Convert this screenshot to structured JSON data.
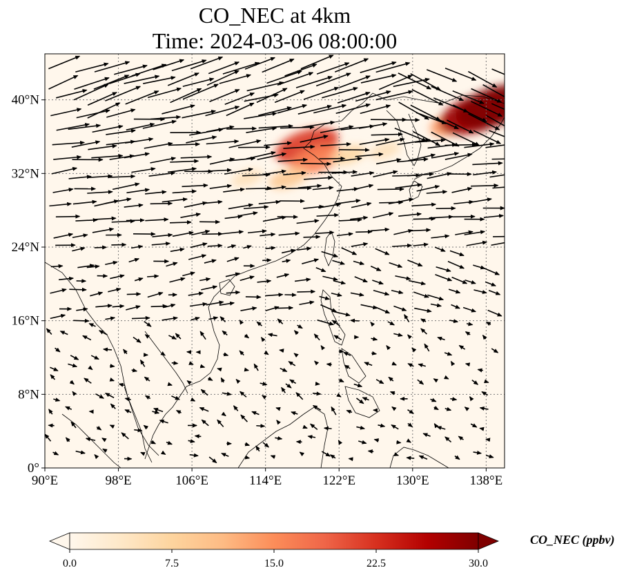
{
  "title": {
    "line1": "CO_NEC at 4km",
    "line2": "Time: 2024-03-06 08:00:00"
  },
  "map": {
    "extent": {
      "lon_min": 90,
      "lon_max": 140,
      "lat_min": 0,
      "lat_max": 45
    },
    "gridlines": true,
    "x_ticks": [
      {
        "value": 90,
        "label": "90°E"
      },
      {
        "value": 98,
        "label": "98°E"
      },
      {
        "value": 106,
        "label": "106°E"
      },
      {
        "value": 114,
        "label": "114°E"
      },
      {
        "value": 122,
        "label": "122°E"
      },
      {
        "value": 130,
        "label": "130°E"
      },
      {
        "value": 138,
        "label": "138°E"
      }
    ],
    "y_ticks": [
      {
        "value": 0,
        "label": "0°"
      },
      {
        "value": 8,
        "label": "8°N"
      },
      {
        "value": 16,
        "label": "16°N"
      },
      {
        "value": 24,
        "label": "24°N"
      },
      {
        "value": 32,
        "label": "32°N"
      },
      {
        "value": 40,
        "label": "40°N"
      }
    ],
    "field_colors": [
      "#fff7ec",
      "#fdd49e",
      "#fc8d59",
      "#d7301f",
      "#7f0000"
    ]
  },
  "colorbar": {
    "label": "CO_NEC (ppbv)",
    "min": 0,
    "max": 30,
    "ticks": [
      "0.0",
      "7.5",
      "15.0",
      "22.5",
      "30.0"
    ],
    "extend": "both",
    "colors": [
      "#fff7ec",
      "#fee8c8",
      "#fdd49e",
      "#fdbb84",
      "#fc8d59",
      "#ef6548",
      "#d7301f",
      "#b30000",
      "#7f0000"
    ]
  },
  "chart_data": {
    "type": "heatmap",
    "variable": "CO_NEC",
    "units": "ppbv",
    "value_range": [
      0,
      30
    ],
    "plumes": [
      {
        "lon": 118.5,
        "lat": 35.0,
        "value": 22
      },
      {
        "lon": 119.5,
        "lat": 33.5,
        "value": 16
      },
      {
        "lon": 116.5,
        "lat": 31.5,
        "value": 9
      },
      {
        "lon": 112.0,
        "lat": 31.5,
        "value": 5
      },
      {
        "lon": 123.0,
        "lat": 34.0,
        "value": 7
      },
      {
        "lon": 127.0,
        "lat": 34.5,
        "value": 5
      },
      {
        "lon": 134.5,
        "lat": 37.5,
        "value": 14
      },
      {
        "lon": 137.0,
        "lat": 38.5,
        "value": 28
      },
      {
        "lon": 139.0,
        "lat": 39.3,
        "value": 30
      }
    ],
    "wind_vectors": "quiver field: strong westerlies north of 24°N (fastest 26–40°N), weak variable flow south of 16°N"
  }
}
